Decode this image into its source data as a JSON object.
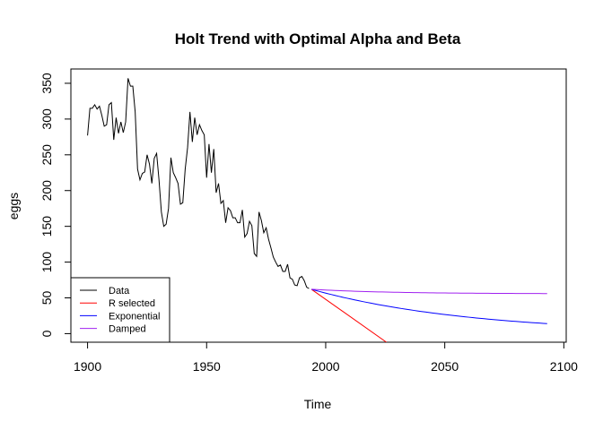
{
  "chart_data": {
    "type": "line",
    "title": "Holt Trend with Optimal Alpha and Beta",
    "xlabel": "Time",
    "ylabel": "eggs",
    "xlim": [
      1893,
      2101
    ],
    "ylim": [
      -12,
      370
    ],
    "xticks": [
      1900,
      1950,
      2000,
      2050,
      2100
    ],
    "yticks": [
      0,
      50,
      100,
      150,
      200,
      250,
      300,
      350
    ],
    "grid": false,
    "legend_position": "bottom-left",
    "legend": [
      {
        "label": "Data",
        "color": "#000000"
      },
      {
        "label": "R selected",
        "color": "#ff0000"
      },
      {
        "label": "Exponential",
        "color": "#0000ff"
      },
      {
        "label": "Damped",
        "color": "#a020f0"
      }
    ],
    "series": [
      {
        "name": "Data",
        "color": "#000000",
        "x_start": 1900,
        "x_step": 1,
        "values": [
          277,
          315,
          315,
          320,
          314,
          318,
          305,
          290,
          292,
          320,
          323,
          271,
          302,
          280,
          296,
          281,
          296,
          357,
          346,
          346,
          310,
          230,
          215,
          224,
          226,
          250,
          237,
          210,
          245,
          252,
          215,
          170,
          150,
          153,
          175,
          246,
          225,
          218,
          210,
          181,
          183,
          230,
          260,
          310,
          268,
          302,
          278,
          292,
          284,
          278,
          218,
          265,
          225,
          258,
          197,
          210,
          182,
          186,
          155,
          176,
          172,
          162,
          162,
          155,
          155,
          173,
          135,
          140,
          157,
          151,
          112,
          108,
          170,
          158,
          141,
          148,
          132,
          120,
          107,
          100,
          94,
          96,
          87,
          87,
          97,
          78,
          76,
          68,
          67,
          78,
          80,
          74,
          65,
          63
        ]
      },
      {
        "name": "R selected",
        "color": "#ff0000",
        "x": [
          1994,
          2025.5
        ],
        "values": [
          62,
          -12
        ]
      },
      {
        "name": "Exponential",
        "color": "#0000ff",
        "x_start": 1994,
        "x_end": 2093,
        "start_value": 62,
        "end_value": 14,
        "curve": "geometric"
      },
      {
        "name": "Damped",
        "color": "#a020f0",
        "x_start": 1994,
        "x_end": 2093,
        "start_value": 62,
        "end_value": 56,
        "curve": "damped"
      }
    ]
  }
}
